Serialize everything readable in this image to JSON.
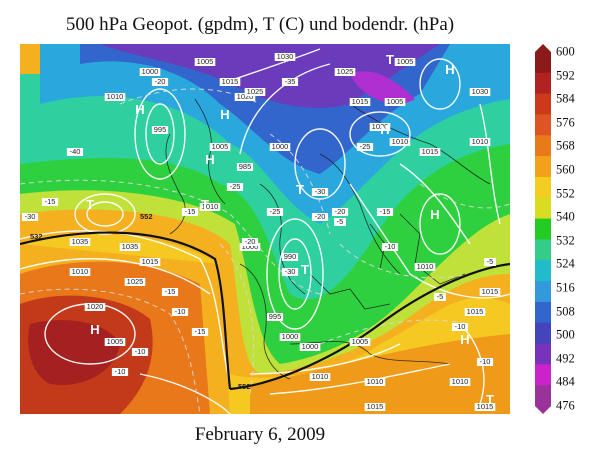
{
  "title": "500 hPa Geopot. (gpdm), T (C) und bodendr. (hPa)",
  "caption": "February 6, 2009",
  "colorbar": {
    "labels": [
      "600",
      "592",
      "584",
      "576",
      "568",
      "560",
      "552",
      "540",
      "532",
      "524",
      "516",
      "508",
      "500",
      "492",
      "484",
      "476"
    ],
    "colors": [
      "#8b1a1a",
      "#b22222",
      "#cc3a1a",
      "#dd5522",
      "#e87a1a",
      "#f3a01a",
      "#f5cc22",
      "#d8dd22",
      "#22cc22",
      "#33cc88",
      "#22bbcc",
      "#3399dd",
      "#3366cc",
      "#4444bb",
      "#7733bb",
      "#cc22cc",
      "#993399"
    ]
  },
  "map": {
    "pressure_labels": [
      "1000",
      "1005",
      "1010",
      "1015",
      "1020",
      "1025",
      "1030",
      "1035",
      "995",
      "990",
      "985"
    ],
    "temperature_labels": [
      "-5",
      "-10",
      "-15",
      "-20",
      "-25",
      "-30",
      "-35",
      "-40"
    ],
    "highs": [
      "H",
      "H",
      "H",
      "H",
      "H",
      "H",
      "H",
      "H"
    ],
    "lows": [
      "T",
      "T",
      "T",
      "T",
      "T",
      "T"
    ],
    "contour_marks": [
      "552",
      "552",
      "532"
    ]
  }
}
